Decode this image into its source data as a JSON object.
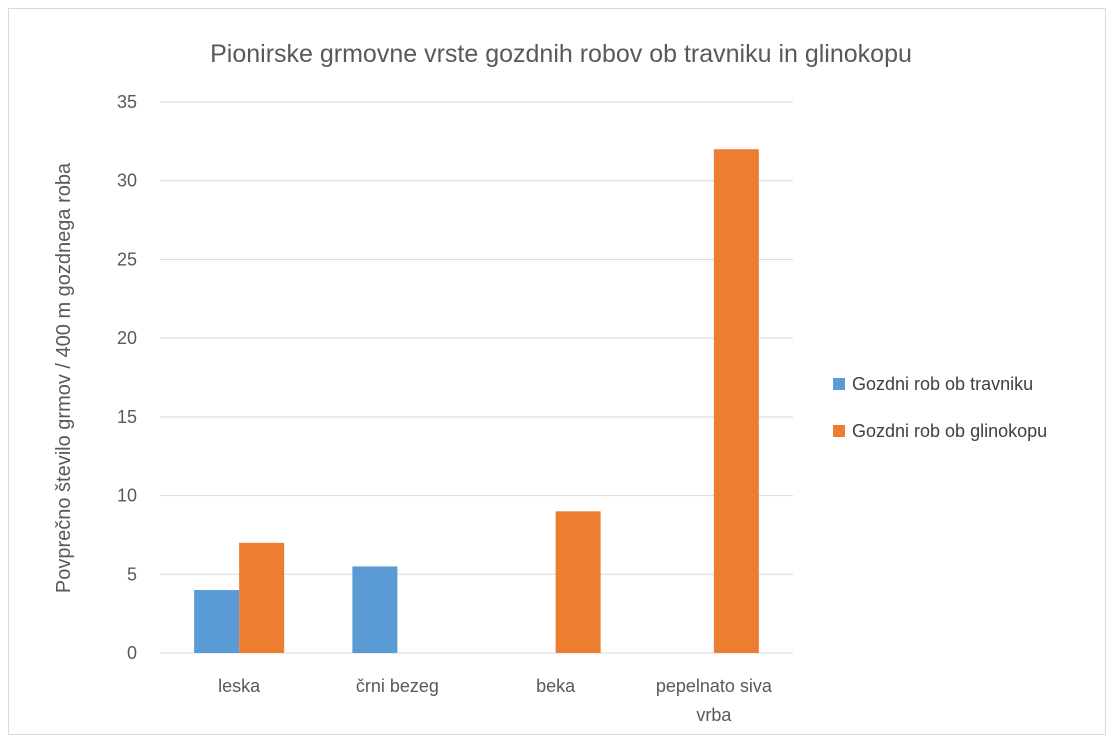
{
  "chart_data": {
    "type": "bar",
    "title": "Pionirske grmovne vrste gozdnih robov ob travniku in glinokopu",
    "xlabel": "",
    "ylabel": "Povprečno število grmov / 400 m gozdnega roba",
    "ylim": [
      0,
      35
    ],
    "yticks": [
      0,
      5,
      10,
      15,
      20,
      25,
      30,
      35
    ],
    "categories": [
      [
        "leska"
      ],
      [
        "črni bezeg"
      ],
      [
        "beka"
      ],
      [
        "pepelnato siva",
        "vrba"
      ]
    ],
    "series": [
      {
        "name": "Gozdni rob ob travniku",
        "color": "#5b9bd5",
        "values": [
          4,
          5.5,
          0,
          0
        ]
      },
      {
        "name": "Gozdni rob ob glinokopu",
        "color": "#ed7d31",
        "values": [
          7,
          0,
          9,
          32
        ]
      }
    ],
    "grid": true,
    "legend_position": "right"
  }
}
